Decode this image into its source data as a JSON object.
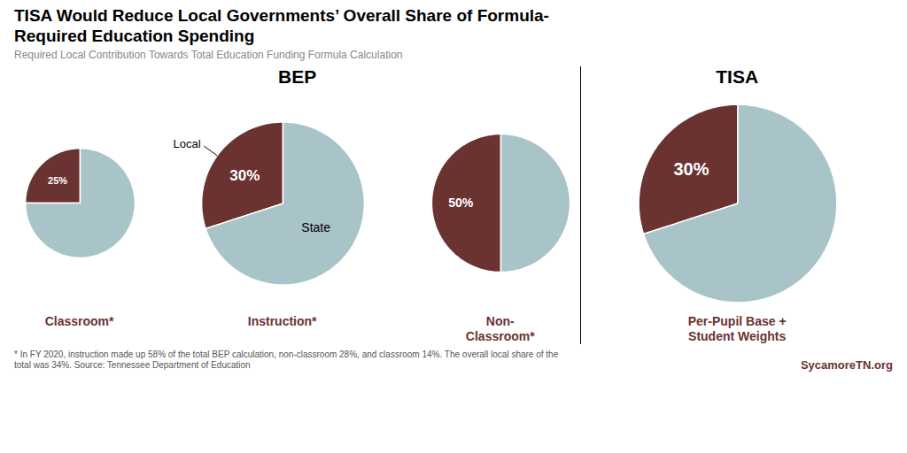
{
  "title": "TISA Would Reduce Local Governments’ Overall Share of Formula-\nRequired Education Spending",
  "subtitle": "Required Local Contribution Towards Total Education Funding Formula Calculation",
  "footnote": "* In FY 2020, instruction made up 58% of the total BEP calculation, non-classroom 28%, and classroom 14%. The overall local share of the\ntotal was 34%. Source: Tennessee Department of Education",
  "source": "SycamoreTN.org",
  "chart_data": [
    {
      "type": "pie",
      "section": "BEP",
      "title": "Classroom*",
      "categories": [
        "Local",
        "State"
      ],
      "values": [
        25,
        75
      ],
      "colors": [
        "#6b3232",
        "#a8c4c8"
      ],
      "data_labels": true,
      "value_labels": [
        "25%",
        null
      ],
      "tick_labels": false
    },
    {
      "type": "pie",
      "section": "BEP",
      "title": "Instruction*",
      "categories": [
        "Local",
        "State"
      ],
      "values": [
        30,
        70
      ],
      "colors": [
        "#6b3232",
        "#a8c4c8"
      ],
      "data_labels": true,
      "value_labels": [
        "30%",
        null
      ]
    },
    {
      "type": "pie",
      "section": "BEP",
      "title": "Non-\nClassroom*",
      "categories": [
        "Local",
        "State"
      ],
      "values": [
        50,
        50
      ],
      "colors": [
        "#6b3232",
        "#a8c4c8"
      ],
      "data_labels": true,
      "value_labels": [
        "50%",
        null
      ],
      "tick_labels": false
    },
    {
      "type": "pie",
      "section": "TISA",
      "title": "Per-Pupil Base +\nStudent Weights",
      "categories": [
        "Local",
        "State"
      ],
      "values": [
        30,
        70
      ],
      "colors": [
        "#6b3232",
        "#a8c4c8"
      ],
      "data_labels": true,
      "value_labels": [
        "30%",
        null
      ],
      "tick_labels": false
    }
  ]
}
